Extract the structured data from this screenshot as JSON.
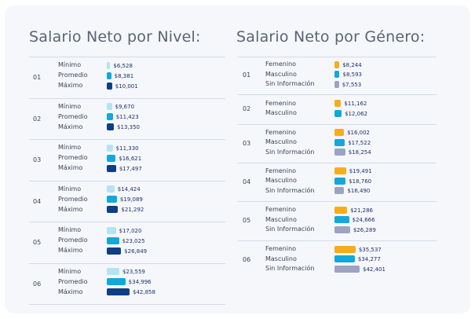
{
  "colors": {
    "nivel": [
      "#b3e3f4",
      "#13a8dc",
      "#0e3f85"
    ],
    "genero": [
      "#f7ad1b",
      "#13a8dc",
      "#9da3c2"
    ]
  },
  "chart_data": [
    {
      "type": "bar",
      "title": "Salario Neto por Nivel:",
      "groups": [
        "01",
        "02",
        "03",
        "04",
        "05",
        "06"
      ],
      "series": [
        {
          "name": "Mínimo",
          "values": [
            6528,
            9670,
            11330,
            14424,
            17020,
            23559
          ]
        },
        {
          "name": "Promedio",
          "values": [
            8381,
            11423,
            16621,
            19089,
            23025,
            34996
          ]
        },
        {
          "name": "Máximo",
          "values": [
            10001,
            13350,
            17497,
            21292,
            26849,
            42858
          ]
        }
      ],
      "value_labels": [
        [
          "$6,528",
          "$8,381",
          "$10,001"
        ],
        [
          "$9,670",
          "$11,423",
          "$13,350"
        ],
        [
          "$11,330",
          "$16,621",
          "$17,497"
        ],
        [
          "$14,424",
          "$19,089",
          "$21,292"
        ],
        [
          "$17,020",
          "$23,025",
          "$26,849"
        ],
        [
          "$23,559",
          "$34,996",
          "$42,858"
        ]
      ]
    },
    {
      "type": "bar",
      "title": "Salario Neto por Género:",
      "groups": [
        "01",
        "02",
        "03",
        "04",
        "05",
        "06"
      ],
      "rows": [
        [
          {
            "cat": "Femenino",
            "value": 8244,
            "label": "$8,244"
          },
          {
            "cat": "Masculino",
            "value": 8593,
            "label": "$8,593"
          },
          {
            "cat": "Sin Información",
            "value": 7553,
            "label": "$7,553"
          }
        ],
        [
          {
            "cat": "Femenino",
            "value": 11162,
            "label": "$11,162"
          },
          {
            "cat": "Masculino",
            "value": 12062,
            "label": "$12,062"
          }
        ],
        [
          {
            "cat": "Femenino",
            "value": 16002,
            "label": "$16,002"
          },
          {
            "cat": "Masculino",
            "value": 17522,
            "label": "$17,522"
          },
          {
            "cat": "Sin Información",
            "value": 18254,
            "label": "$18,254"
          }
        ],
        [
          {
            "cat": "Femenino",
            "value": 19491,
            "label": "$19,491"
          },
          {
            "cat": "Masculino",
            "value": 18760,
            "label": "$18,760"
          },
          {
            "cat": "Sin Información",
            "value": 16490,
            "label": "$16,490"
          }
        ],
        [
          {
            "cat": "Femenino",
            "value": 21286,
            "label": "$21,286"
          },
          {
            "cat": "Masculino",
            "value": 24666,
            "label": "$24,666"
          },
          {
            "cat": "Sin Información",
            "value": 26289,
            "label": "$26,289"
          }
        ],
        [
          {
            "cat": "Femenino",
            "value": 35537,
            "label": "$35,537"
          },
          {
            "cat": "Masculino",
            "value": 34277,
            "label": "$34,277"
          },
          {
            "cat": "Sin Información",
            "value": 42401,
            "label": "$42,401"
          }
        ]
      ]
    }
  ]
}
